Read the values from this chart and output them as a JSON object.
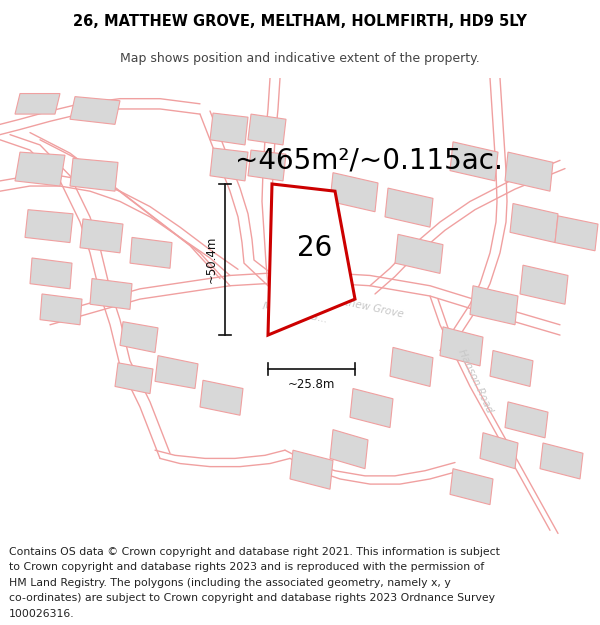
{
  "title_line1": "26, MATTHEW GROVE, MELTHAM, HOLMFIRTH, HD9 5LY",
  "title_line2": "Map shows position and indicative extent of the property.",
  "area_text": "~465m²/~0.115ac.",
  "label_26": "26",
  "dim_height": "~50.4m",
  "dim_width": "~25.8m",
  "footer_lines": [
    "Contains OS data © Crown copyright and database right 2021. This information is subject",
    "to Crown copyright and database rights 2023 and is reproduced with the permission of",
    "HM Land Registry. The polygons (including the associated geometry, namely x, y",
    "co-ordinates) are subject to Crown copyright and database rights 2023 Ordnance Survey",
    "100026316."
  ],
  "bg_color": "#ffffff",
  "road_color": "#f0a0a0",
  "road_lw": 0.8,
  "building_fc": "#d8d8d8",
  "building_ec": "#f0a0a0",
  "building_lw": 0.8,
  "highlight_ec": "#cc0000",
  "highlight_fc": "#ffffff",
  "highlight_lw": 2.2,
  "dim_color": "#111111",
  "label_color": "#000000",
  "road_label_color": "#c8c8c8",
  "title_fs": 10.5,
  "subtitle_fs": 9.0,
  "area_fs": 20,
  "label_fs": 20,
  "dim_fs": 8.5,
  "road_label_fs": 7.5,
  "footer_fs": 7.8
}
